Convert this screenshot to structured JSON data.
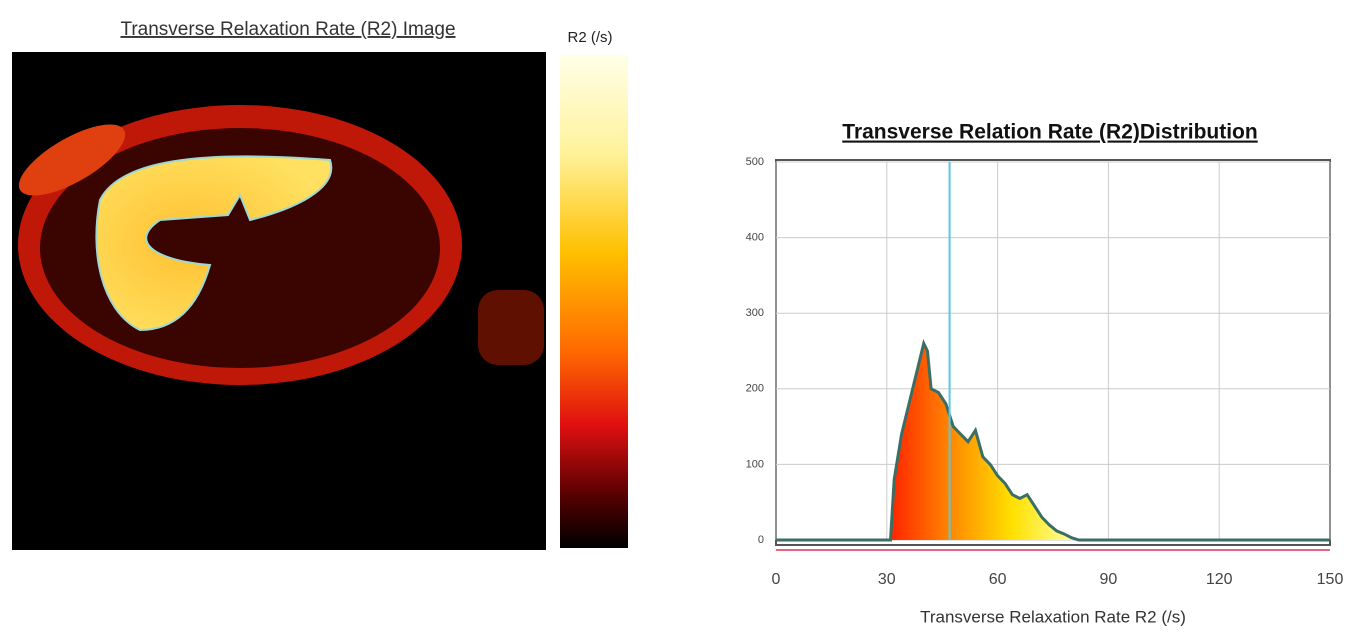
{
  "image_panel": {
    "title": "Transverse Relaxation Rate (R2) Image",
    "colorbar_label": "R2 (/s)"
  },
  "chart_data": {
    "type": "area",
    "title": "Transverse Relation Rate (R2)Distribution",
    "x_label": "Transverse Relaxation Rate R2 (/s)",
    "x": [
      0,
      10,
      20,
      30,
      31,
      32,
      34,
      36,
      38,
      40,
      41,
      42,
      44,
      46,
      48,
      50,
      52,
      54,
      56,
      58,
      60,
      62,
      64,
      66,
      68,
      70,
      72,
      74,
      76,
      78,
      80,
      82,
      90,
      100,
      110,
      120,
      130,
      140,
      150
    ],
    "values": [
      0,
      0,
      0,
      0,
      0,
      80,
      140,
      180,
      220,
      260,
      250,
      200,
      195,
      180,
      150,
      140,
      130,
      145,
      110,
      100,
      85,
      75,
      60,
      55,
      60,
      45,
      30,
      20,
      12,
      8,
      3,
      0,
      0,
      0,
      0,
      0,
      0,
      0,
      0
    ],
    "line_color": "#3c6e64",
    "fill_colors": [
      "#ff2a00",
      "#ff8c00",
      "#ffe000",
      "#ffff99"
    ],
    "marker_line": 47,
    "marker_color": "#5bc8e0",
    "xlim": [
      0,
      150
    ],
    "xticks": [
      0,
      30,
      60,
      90,
      120,
      150
    ],
    "ylim": [
      0,
      500
    ],
    "yticks": [
      0,
      100,
      200,
      300,
      400,
      500
    ],
    "grid": true
  }
}
